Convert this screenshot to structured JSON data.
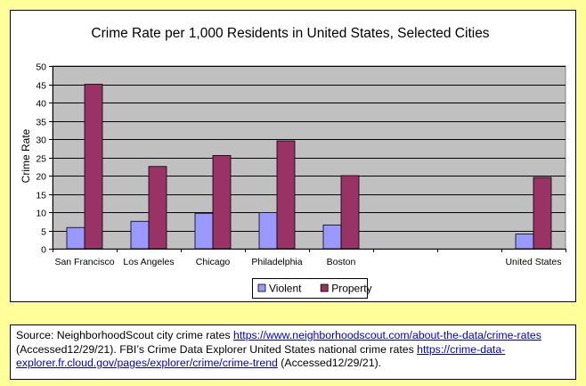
{
  "chart_data": {
    "type": "bar",
    "title": "Crime Rate per 1,000 Residents in United States, Selected Cities",
    "ylabel": "Crime Rate",
    "xlabel": "",
    "ylim": [
      0,
      50
    ],
    "yticks": [
      0,
      5,
      10,
      15,
      20,
      25,
      30,
      35,
      40,
      45,
      50
    ],
    "grid": true,
    "legend_position": "bottom",
    "categories": [
      "San Francisco",
      "Los Angeles",
      "Chicago",
      "Philadelphia",
      "Boston",
      "",
      "",
      "United States"
    ],
    "series": [
      {
        "name": "Violent",
        "color": "#9999ff",
        "values": [
          5.8,
          7.5,
          9.7,
          9.9,
          6.5,
          null,
          null,
          4.0
        ]
      },
      {
        "name": "Property",
        "color": "#993366",
        "values": [
          45.0,
          22.5,
          25.5,
          29.5,
          20.0,
          null,
          null,
          19.5
        ]
      }
    ],
    "plot_background": "#c0c0c0"
  },
  "source": {
    "prefix": "Source: NeighborhoodScout city crime rates ",
    "link1": "https://www.neighborhoodscout.com/about-the-data/crime-rates",
    "middle": " (Accessed12/29/21). FBI’s Crime Data Explorer United States national crime rates ",
    "link2": "https://crime-data-explorer.fr.cloud.gov/pages/explorer/crime/crime-trend",
    "suffix": " (Accessed12/29/21)."
  }
}
